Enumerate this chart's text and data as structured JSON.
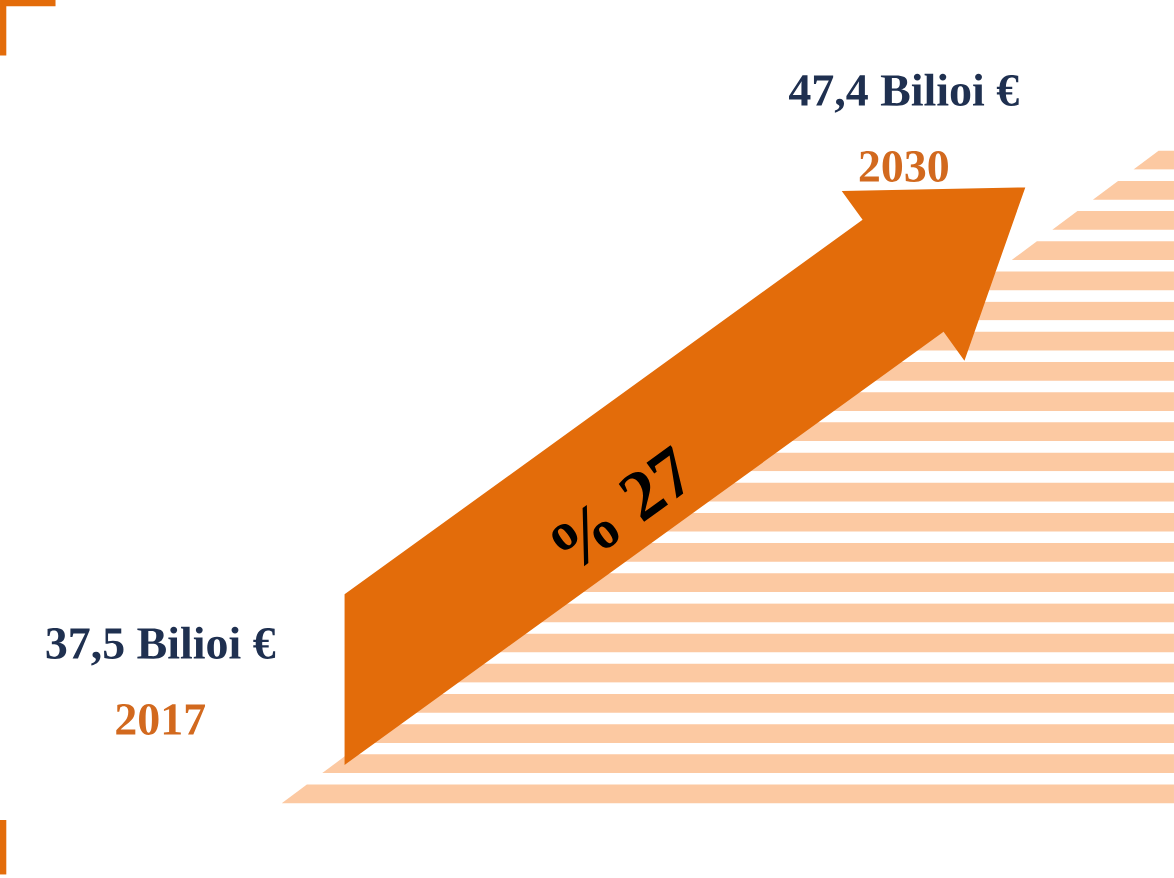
{
  "chart_data": {
    "type": "other",
    "categories": [
      "2017",
      "2030"
    ],
    "values": [
      37.5,
      47.4
    ],
    "value_labels": [
      "37,5 Bilioi €",
      "47,4 Bilioi €"
    ],
    "annotations": [
      "% 27"
    ]
  }
}
